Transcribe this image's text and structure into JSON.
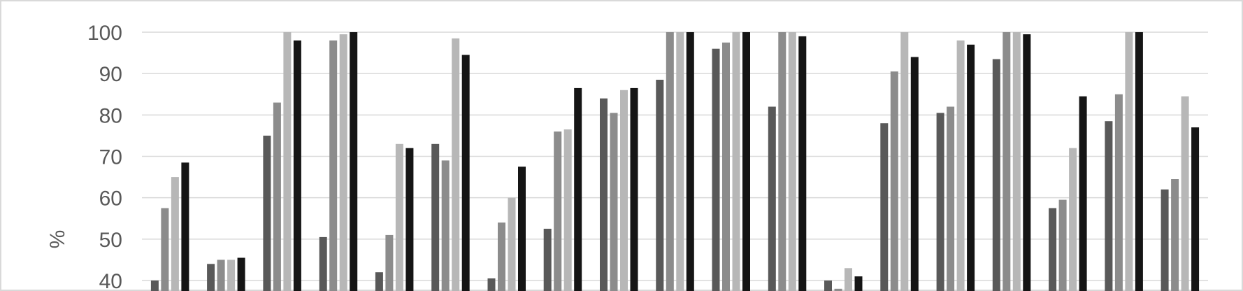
{
  "chart_data": {
    "type": "bar",
    "ylabel": "%",
    "ylim": [
      40,
      100
    ],
    "ytick_step": 10,
    "y_ticks": [
      "40",
      "50",
      "60",
      "70",
      "80",
      "90",
      "100"
    ],
    "grid": true,
    "series": [
      {
        "values": [
          40,
          44,
          75,
          50.5,
          42,
          73,
          40.5,
          52.5,
          84,
          88.5,
          96,
          82,
          40,
          78,
          80.5,
          93.5,
          57.5,
          78.5,
          62
        ]
      },
      {
        "values": [
          57.5,
          45,
          83,
          98,
          51,
          69,
          54,
          76,
          80.5,
          100,
          97.5,
          100,
          38,
          90.5,
          82,
          100,
          59.5,
          85,
          64.5
        ]
      },
      {
        "values": [
          65,
          45,
          100,
          99.5,
          73,
          98.5,
          60,
          76.5,
          86,
          100,
          100,
          100,
          43,
          100,
          98,
          100,
          72,
          100,
          84.5
        ]
      },
      {
        "values": [
          68.5,
          45.5,
          98,
          100,
          72,
          94.5,
          67.5,
          86.5,
          86.5,
          100,
          100,
          99,
          41,
          94,
          97,
          99.5,
          84.5,
          100,
          77
        ]
      }
    ],
    "colors": [
      "#595959",
      "#8c8c8c",
      "#b7b7b7",
      "#151515"
    ]
  }
}
